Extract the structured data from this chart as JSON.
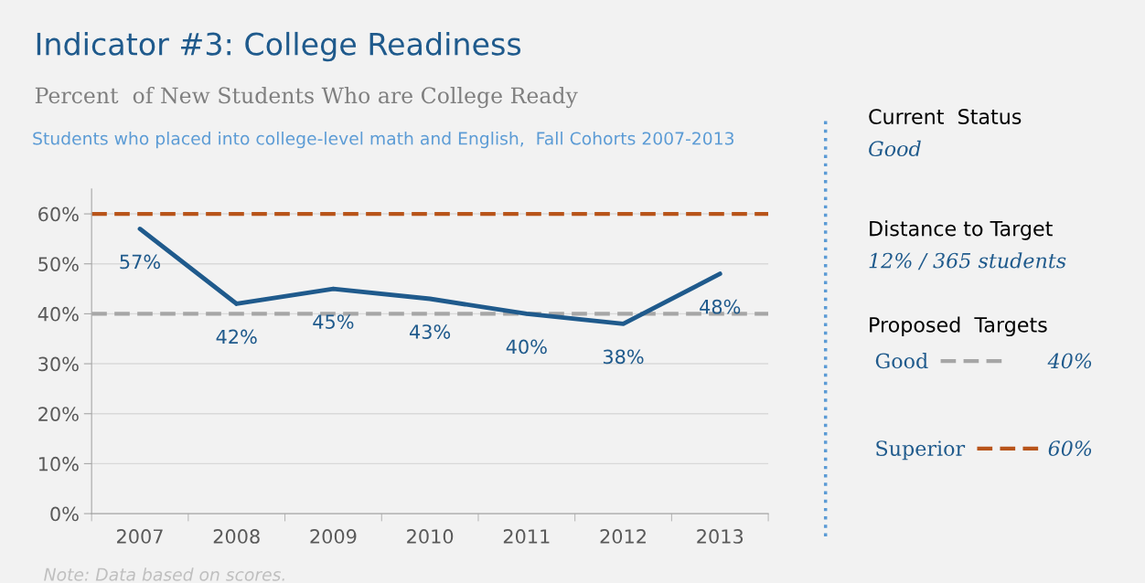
{
  "chart_data": {
    "type": "line",
    "title": "Indicator #3: College Readiness",
    "subtitle": "Percent  of New Students Who are College Ready",
    "categories": [
      "2007",
      "2008",
      "2009",
      "2010",
      "2011",
      "2012",
      "2013"
    ],
    "series": [
      {
        "color": "#1f5a8c",
        "values": [
          57,
          42,
          45,
          43,
          40,
          38,
          48
        ],
        "value_labels": [
          "57%",
          "42%",
          "45%",
          "43%",
          "40%",
          "38%",
          "48%"
        ]
      }
    ],
    "data_labels": true,
    "ylim": [
      0,
      65
    ],
    "yticks": [
      {
        "value": 0,
        "label": "0%"
      },
      {
        "value": 10,
        "label": "10%"
      },
      {
        "value": 20,
        "label": "20%"
      },
      {
        "value": 30,
        "label": "30%"
      },
      {
        "value": 40,
        "label": "40%"
      },
      {
        "value": 50,
        "label": "50%"
      },
      {
        "value": 60,
        "label": "60%"
      }
    ],
    "grid": "y",
    "legend": "right",
    "marker": "none",
    "line_style": "solid",
    "ref_lines": [
      {
        "axis": "y",
        "value": 60,
        "label": "Superior",
        "color": "#b8541a",
        "line_style": "dashed"
      },
      {
        "axis": "y",
        "value": 40,
        "label": "Good",
        "color": "#a6a6a6",
        "line_style": "dashed"
      }
    ],
    "annotations": [
      "Students who placed into college-level math and English,  Fall Cohorts 2007-2013",
      "Current  Status",
      "Good",
      "Distance to Target",
      "12% / 365 students",
      "Proposed  Targets",
      "60%",
      "40%",
      "Note: Data based on scores."
    ]
  }
}
